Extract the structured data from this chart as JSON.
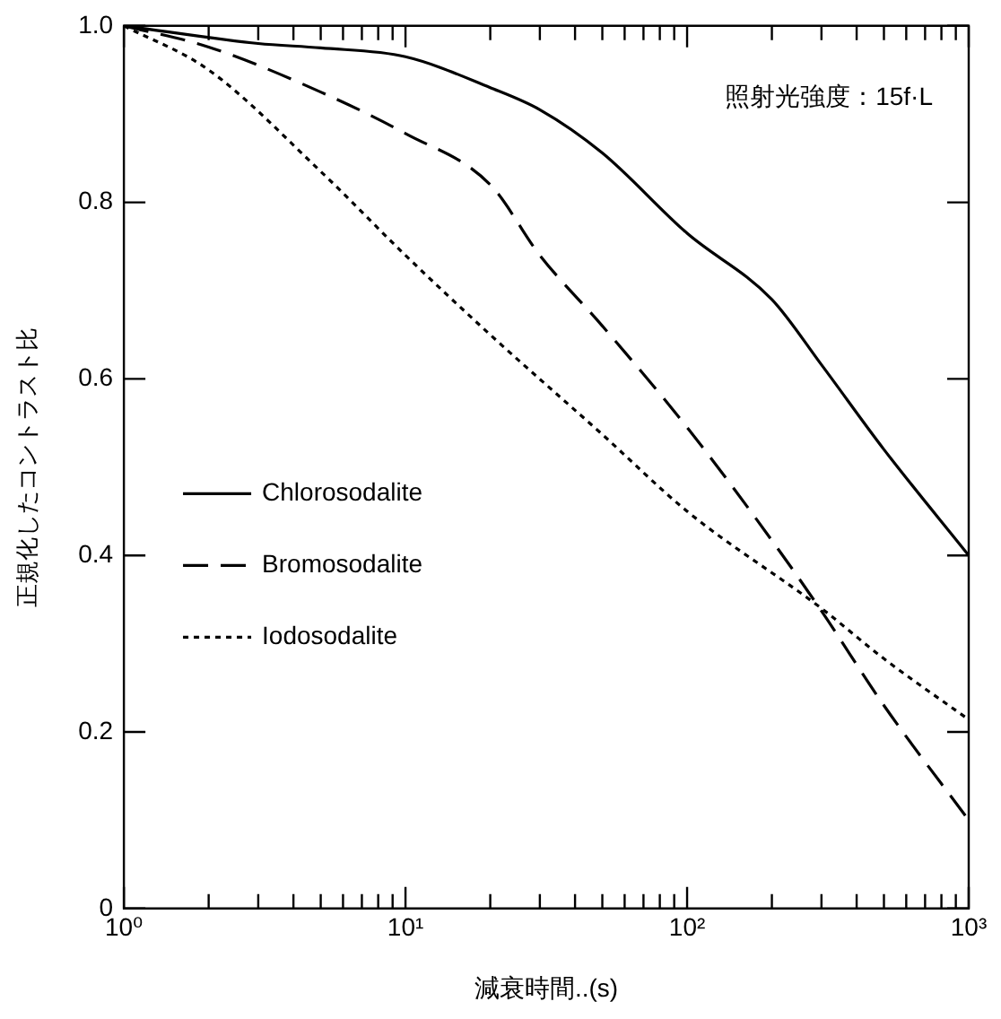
{
  "chart_data": {
    "type": "line",
    "xlabel": "減衰時間..(s)",
    "ylabel": "正規化したコントラスト比",
    "log": "x",
    "legend": "left",
    "grid": false,
    "marker": "none",
    "xlim": [
      1,
      1000
    ],
    "ylim": [
      0,
      1
    ],
    "xticks": [
      {
        "value": 1,
        "label": "10⁰"
      },
      {
        "value": 2,
        "label": null
      },
      {
        "value": 3,
        "label": null
      },
      {
        "value": 4,
        "label": null
      },
      {
        "value": 5,
        "label": null
      },
      {
        "value": 6,
        "label": null
      },
      {
        "value": 7,
        "label": null
      },
      {
        "value": 8,
        "label": null
      },
      {
        "value": 9,
        "label": null
      },
      {
        "value": 10,
        "label": "10¹"
      },
      {
        "value": 20,
        "label": null
      },
      {
        "value": 30,
        "label": null
      },
      {
        "value": 40,
        "label": null
      },
      {
        "value": 50,
        "label": null
      },
      {
        "value": 60,
        "label": null
      },
      {
        "value": 70,
        "label": null
      },
      {
        "value": 80,
        "label": null
      },
      {
        "value": 90,
        "label": null
      },
      {
        "value": 100,
        "label": "10²"
      },
      {
        "value": 200,
        "label": null
      },
      {
        "value": 300,
        "label": null
      },
      {
        "value": 400,
        "label": null
      },
      {
        "value": 500,
        "label": null
      },
      {
        "value": 600,
        "label": null
      },
      {
        "value": 700,
        "label": null
      },
      {
        "value": 800,
        "label": null
      },
      {
        "value": 900,
        "label": null
      },
      {
        "value": 1000,
        "label": "10³"
      }
    ],
    "yticks": [
      0,
      0.2,
      0.4,
      0.6,
      0.8,
      {
        "value": 1,
        "label": "1.0"
      }
    ],
    "annotations": [
      "照射光強度：15f·L"
    ],
    "series": [
      {
        "name": "Chlorosodalite",
        "color": "#000000",
        "line_style": "solid",
        "x": [
          1,
          3,
          5,
          10,
          20,
          30,
          50,
          100,
          200,
          300,
          500,
          1000
        ],
        "values": [
          1,
          0.98,
          0.975,
          0.965,
          0.93,
          0.905,
          0.856,
          0.765,
          0.69,
          0.616,
          0.52,
          0.4
        ]
      },
      {
        "name": "Bromosodalite",
        "color": "#000000",
        "line_style": "dashed",
        "x": [
          1,
          2,
          5,
          10,
          20,
          30,
          50,
          100,
          200,
          300,
          500,
          1000
        ],
        "values": [
          1,
          0.976,
          0.925,
          0.878,
          0.82,
          0.74,
          0.66,
          0.545,
          0.417,
          0.337,
          0.23,
          0.1
        ]
      },
      {
        "name": "Iodosodalite",
        "color": "#000000",
        "line_style": "dotted",
        "x": [
          1,
          2,
          5,
          10,
          20,
          50,
          100,
          300,
          500,
          1000
        ],
        "values": [
          1,
          0.95,
          0.835,
          0.74,
          0.65,
          0.537,
          0.45,
          0.34,
          0.283,
          0.214
        ]
      }
    ]
  }
}
